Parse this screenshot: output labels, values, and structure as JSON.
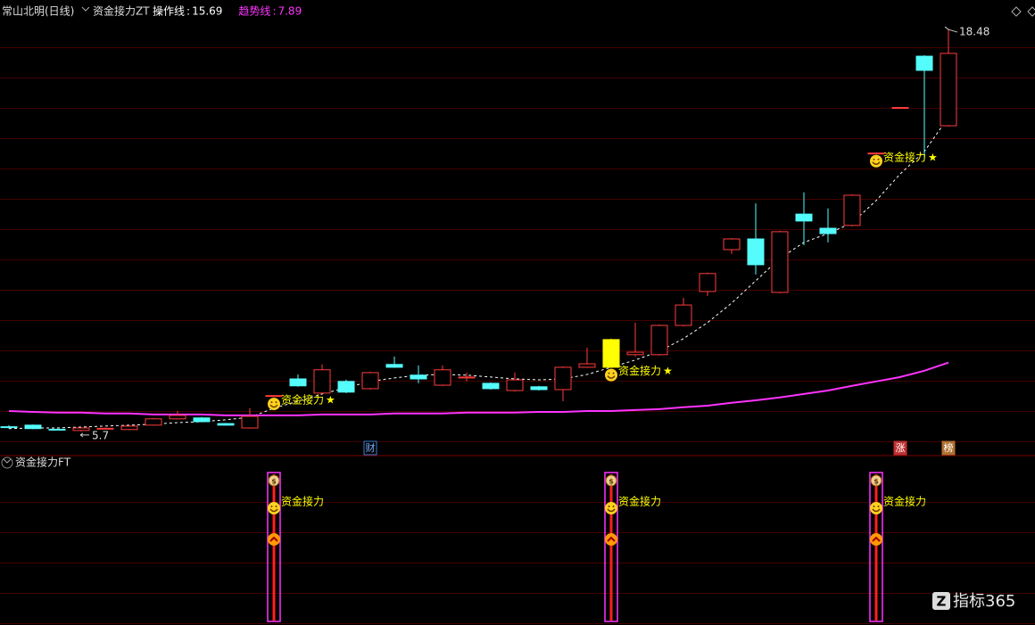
{
  "chart_data": {
    "type": "candlestick",
    "title": "常山北明(日线)",
    "indicator": "资金接力ZT",
    "ylim": [
      4.96,
      18.85
    ],
    "up_color": "#ff3c3c",
    "down_color": "#54fcfc",
    "highlight": {
      "index": 25,
      "color": "#ffff00"
    },
    "candles": {
      "open": [
        5.85,
        5.9,
        5.77,
        5.73,
        5.79,
        5.76,
        5.9,
        6.1,
        6.13,
        5.95,
        5.81,
        6.83,
        7.37,
        6.92,
        7.29,
        7.06,
        7.83,
        7.49,
        7.17,
        7.4,
        7.23,
        7.0,
        7.12,
        7.03,
        7.74,
        7.74,
        8.14,
        8.14,
        9.07,
        10.15,
        11.48,
        11.82,
        10.12,
        12.61,
        12.16,
        12.25,
        14.54,
        15.99,
        17.63,
        15.42
      ],
      "high": [
        5.9,
        5.92,
        5.79,
        5.83,
        5.82,
        5.89,
        6.13,
        6.35,
        6.16,
        5.97,
        6.44,
        6.86,
        7.51,
        7.83,
        7.35,
        7.6,
        8.08,
        7.8,
        7.8,
        7.57,
        7.26,
        7.57,
        7.15,
        7.77,
        8.36,
        8.65,
        9.16,
        9.1,
        9.95,
        10.75,
        11.85,
        12.95,
        12.08,
        13.3,
        12.79,
        13.24,
        14.57,
        16.02,
        17.66,
        18.48
      ],
      "low": [
        5.79,
        5.77,
        5.74,
        5.7,
        5.77,
        5.74,
        5.88,
        6.08,
        5.99,
        5.88,
        5.79,
        6.8,
        7.12,
        6.89,
        6.92,
        7.03,
        7.72,
        7.23,
        7.14,
        7.29,
        7.03,
        6.97,
        7.0,
        6.66,
        7.72,
        7.72,
        8.08,
        8.11,
        9.04,
        10.01,
        11.34,
        10.69,
        10.09,
        11.62,
        11.71,
        12.22,
        14.52,
        15.97,
        14.32,
        15.39
      ],
      "close": [
        5.84,
        5.79,
        5.76,
        5.81,
        5.8,
        5.87,
        6.1,
        6.21,
        6.01,
        5.9,
        6.18,
        6.84,
        7.15,
        7.66,
        6.95,
        7.57,
        7.74,
        7.37,
        7.66,
        7.43,
        7.06,
        7.34,
        7.03,
        7.74,
        7.85,
        8.62,
        8.22,
        9.07,
        9.72,
        10.72,
        11.82,
        11.0,
        12.05,
        12.39,
        11.99,
        13.21,
        14.55,
        16.0,
        17.18,
        17.72
      ]
    },
    "series": [
      {
        "name": "操作线",
        "color": "#ffffff",
        "style": "dashed",
        "values": [
          5.79,
          5.81,
          5.81,
          5.84,
          5.87,
          5.9,
          5.93,
          5.98,
          6.01,
          6.07,
          6.15,
          6.44,
          6.66,
          6.89,
          7.09,
          7.29,
          7.4,
          7.49,
          7.51,
          7.49,
          7.43,
          7.37,
          7.34,
          7.37,
          7.51,
          7.74,
          7.97,
          8.25,
          8.65,
          9.16,
          9.78,
          10.49,
          11.2,
          11.71,
          11.99,
          12.33,
          13.04,
          13.89,
          14.6,
          15.69
        ]
      },
      {
        "name": "趋势线",
        "color": "#ff33ff",
        "style": "solid",
        "values": [
          6.35,
          6.32,
          6.3,
          6.3,
          6.27,
          6.27,
          6.24,
          6.24,
          6.24,
          6.21,
          6.21,
          6.21,
          6.21,
          6.24,
          6.24,
          6.24,
          6.27,
          6.27,
          6.27,
          6.3,
          6.3,
          6.3,
          6.32,
          6.32,
          6.35,
          6.35,
          6.38,
          6.41,
          6.47,
          6.52,
          6.61,
          6.69,
          6.78,
          6.89,
          7.0,
          7.15,
          7.29,
          7.43,
          7.63,
          7.89
        ]
      }
    ],
    "markers": [
      {
        "index": 15,
        "label": "财",
        "color": "#3a7bd5"
      },
      {
        "index": 37,
        "label": "涨",
        "color": "#c03030"
      },
      {
        "index": 39,
        "label": "榜",
        "color": "#b07030"
      }
    ],
    "signals": {
      "label": "资金接力",
      "star": "★",
      "indices": [
        11,
        25,
        36
      ]
    },
    "subchart": {
      "title": "资金接力FT"
    },
    "watermark": "指标365"
  }
}
